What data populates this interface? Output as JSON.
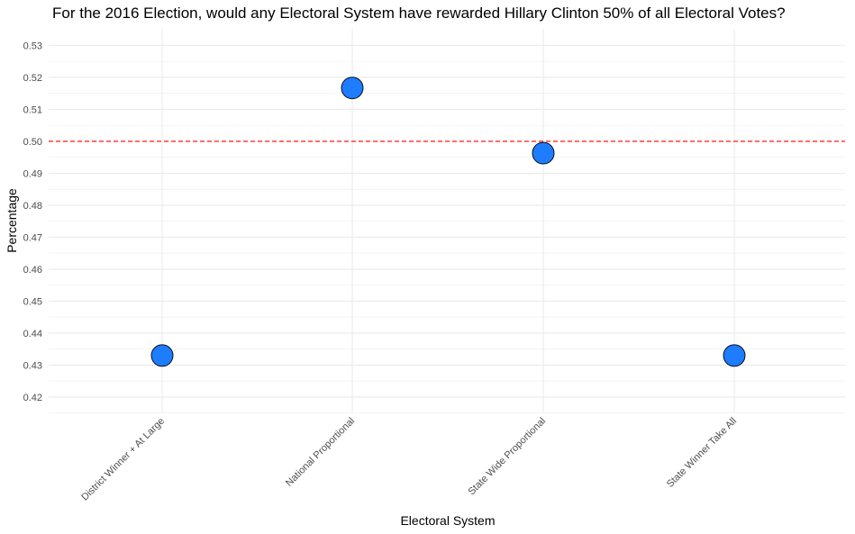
{
  "chart_data": {
    "type": "scatter",
    "title": "For the 2016 Election, would any Electoral System have rewarded Hillary Clinton 50% of all Electoral Votes?",
    "xlabel": "Electoral System",
    "ylabel": "Percentage",
    "categories": [
      "District Winner + At Large",
      "National Proportional",
      "State Wide Proportional",
      "State Winner Take All"
    ],
    "values": [
      0.433,
      0.5167,
      0.4963,
      0.433
    ],
    "yticks": [
      "0.42",
      "0.43",
      "0.44",
      "0.45",
      "0.46",
      "0.47",
      "0.48",
      "0.49",
      "0.50",
      "0.51",
      "0.52",
      "0.53"
    ],
    "ylim": [
      0.4152,
      0.5352
    ],
    "reference_line": {
      "y": 0.5,
      "style": "dashed",
      "color": "#ff0000"
    },
    "point_color": "#1e7cff",
    "point_outline": "#000000",
    "grid": true
  }
}
